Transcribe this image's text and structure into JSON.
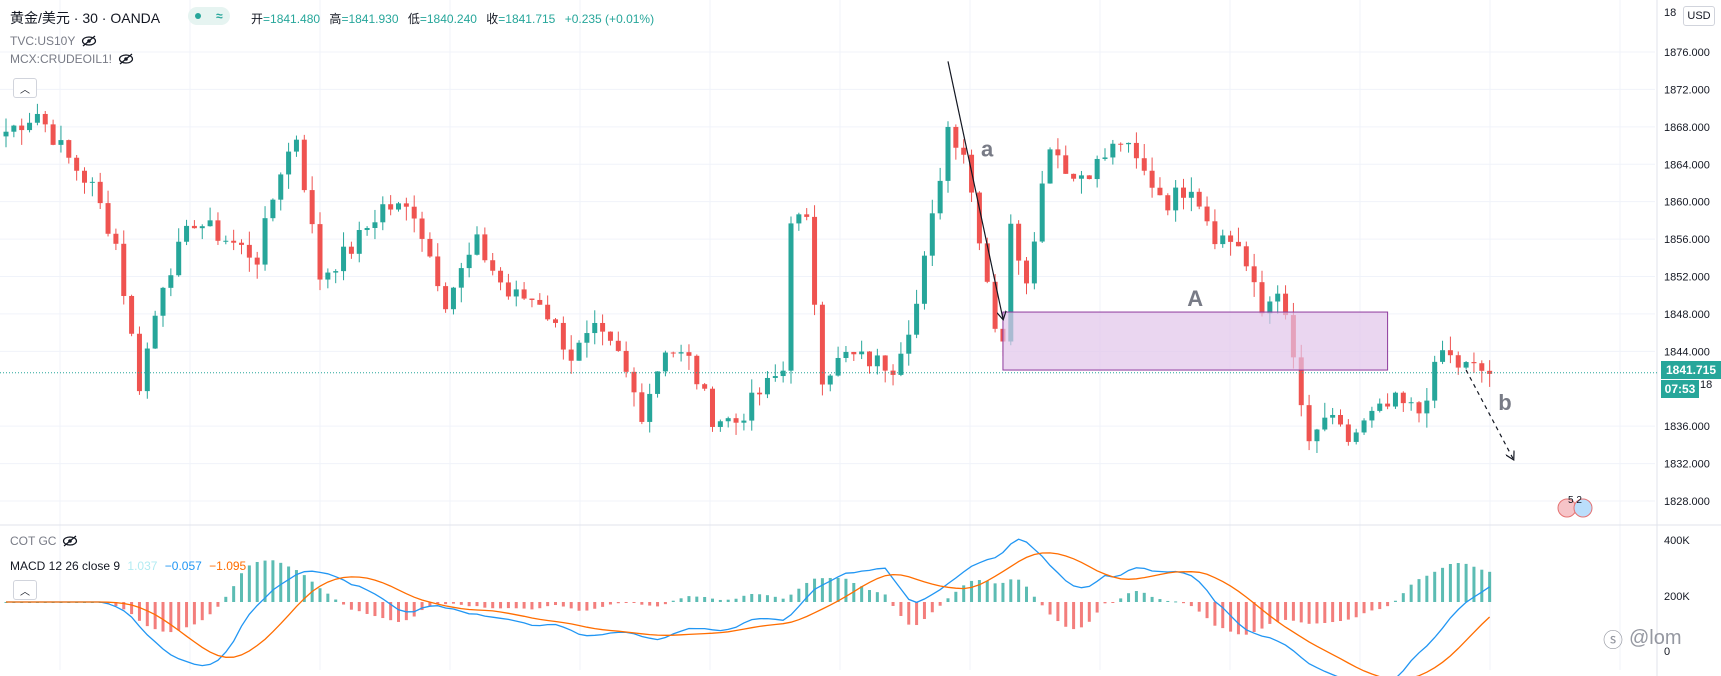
{
  "header": {
    "symbol": "黄金/美元 · 30 · OANDA",
    "ohlc": [
      {
        "label": "开",
        "value": "=1841.480"
      },
      {
        "label": "高",
        "value": "=1841.930"
      },
      {
        "label": "低",
        "value": "=1840.240"
      },
      {
        "label": "收",
        "value": "=1841.715"
      }
    ],
    "change": "+0.235 (+0.01%)"
  },
  "overlays": [
    {
      "label": "TVC:US10Y"
    },
    {
      "label": "MCX:CRUDEOIL1!"
    }
  ],
  "price_axis": {
    "currency_button": "USD",
    "ticks": [
      "1876.000",
      "1872.000",
      "1868.000",
      "1864.000",
      "1860.000",
      "1856.000",
      "1852.000",
      "1848.000",
      "1844.000",
      "1836.000",
      "1832.000",
      "1828.000"
    ],
    "partial_top": "18",
    "partial_mid": "18",
    "current_price": "1841.715",
    "countdown": "07:53"
  },
  "indicator_pane": {
    "cot_label": "COT GC",
    "macd_label": "MACD 12 26 close 9",
    "macd_values": {
      "histogram": "1.037",
      "macd": "−0.057",
      "signal": "−1.095"
    },
    "axis_ticks": [
      "400K",
      "200K",
      "0"
    ]
  },
  "annotations": {
    "wave_a": "a",
    "wave_A": "A",
    "wave_b": "b",
    "event_badge": "5 2"
  },
  "watermark": "@lom",
  "colors": {
    "up": "#26a69a",
    "down": "#ef5350",
    "zone": "#e1c4ea",
    "zone_border": "#8e3a9d",
    "macd_line": "#2196f3",
    "signal_line": "#ff6d00",
    "grid": "#f0f3fa"
  },
  "chart_data": {
    "type": "candlestick",
    "title": "",
    "ylim": [
      1826,
      1880
    ],
    "yticks": [
      1828,
      1832,
      1836,
      1844,
      1848,
      1852,
      1856,
      1860,
      1864,
      1868,
      1872,
      1876
    ],
    "current_price": 1841.715,
    "candle_count": 200,
    "anchors": [
      [
        0,
        1867.5
      ],
      [
        4,
        1869.5
      ],
      [
        8,
        1864.5
      ],
      [
        11,
        1861.5
      ],
      [
        14,
        1855.5
      ],
      [
        17,
        1840.5
      ],
      [
        20,
        1851.5
      ],
      [
        24,
        1858.0
      ],
      [
        28,
        1856.0
      ],
      [
        32,
        1854.0
      ],
      [
        35,
        1863.5
      ],
      [
        37,
        1867.0
      ],
      [
        40,
        1852.0
      ],
      [
        44,
        1855.0
      ],
      [
        48,
        1859.5
      ],
      [
        52,
        1859.0
      ],
      [
        56,
        1849.5
      ],
      [
        60,
        1855.5
      ],
      [
        64,
        1850.0
      ],
      [
        68,
        1849.5
      ],
      [
        72,
        1843.5
      ],
      [
        75,
        1846.0
      ],
      [
        78,
        1843.5
      ],
      [
        81,
        1837.5
      ],
      [
        84,
        1844.5
      ],
      [
        87,
        1843.0
      ],
      [
        90,
        1837.0
      ],
      [
        93,
        1836.5
      ],
      [
        96,
        1839.5
      ],
      [
        99,
        1842.0
      ],
      [
        100,
        1858.5
      ],
      [
        102,
        1857.5
      ],
      [
        104,
        1841.5
      ],
      [
        107,
        1843.5
      ],
      [
        110,
        1843.0
      ],
      [
        113,
        1842.5
      ],
      [
        116,
        1849.0
      ],
      [
        118,
        1858.0
      ],
      [
        120,
        1868.0
      ],
      [
        122,
        1865.5
      ],
      [
        124,
        1856.5
      ],
      [
        126,
        1847.0
      ],
      [
        127,
        1845.5
      ],
      [
        128,
        1857.0
      ],
      [
        130,
        1852.0
      ],
      [
        133,
        1866.5
      ],
      [
        136,
        1862.5
      ],
      [
        139,
        1864.0
      ],
      [
        142,
        1866.5
      ],
      [
        145,
        1863.0
      ],
      [
        148,
        1860.0
      ],
      [
        151,
        1862.0
      ],
      [
        154,
        1856.5
      ],
      [
        157,
        1855.5
      ],
      [
        160,
        1848.0
      ],
      [
        162,
        1851.0
      ],
      [
        164,
        1843.0
      ],
      [
        166,
        1833.5
      ],
      [
        168,
        1837.0
      ],
      [
        171,
        1834.5
      ],
      [
        174,
        1837.0
      ],
      [
        177,
        1838.5
      ],
      [
        180,
        1837.5
      ],
      [
        183,
        1844.0
      ],
      [
        185,
        1842.5
      ],
      [
        189,
        1841.715
      ]
    ],
    "zone": {
      "label": "A",
      "x_start_candle": 127,
      "x_end_candle": 176,
      "y_low": 1842.0,
      "y_high": 1848.2
    },
    "arrows": [
      {
        "label": "a",
        "from": [
          120,
          1875.0
        ],
        "to": [
          127,
          1847.5
        ],
        "style": "solid"
      },
      {
        "label": "b",
        "from": [
          186,
          1842.0
        ],
        "to": [
          192,
          1832.5
        ],
        "style": "dashed"
      }
    ],
    "macd": {
      "legend": [
        "MACD 12 26 close 9",
        "1.037",
        "−0.057",
        "−1.095"
      ]
    }
  }
}
